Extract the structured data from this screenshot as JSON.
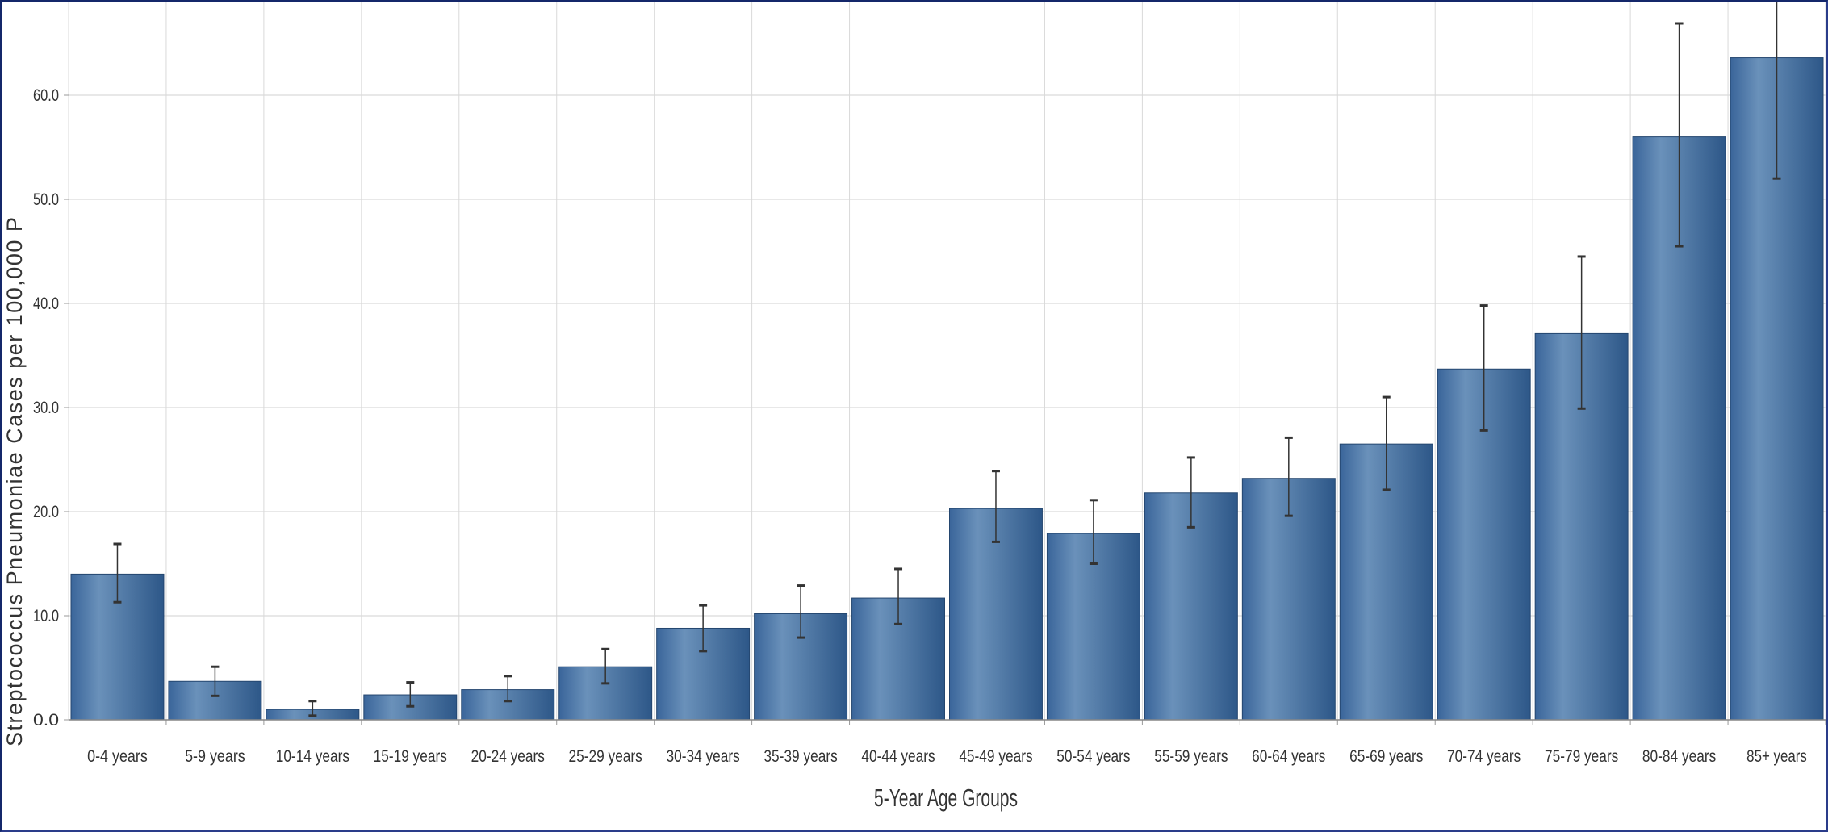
{
  "chart_data": {
    "type": "bar",
    "title": "",
    "xlabel": "5-Year Age Groups",
    "ylabel": "Streptococcus Pneumoniae Cases per 100,000 P",
    "categories": [
      "0-4 years",
      "5-9 years",
      "10-14 years",
      "15-19 years",
      "20-24 years",
      "25-29 years",
      "30-34 years",
      "35-39 years",
      "40-44 years",
      "45-49 years",
      "50-54 years",
      "55-59 years",
      "60-64 years",
      "65-69 years",
      "70-74 years",
      "75-79 years",
      "80-84 years",
      "85+ years"
    ],
    "values": [
      14.0,
      3.7,
      1.0,
      2.4,
      2.9,
      5.1,
      8.8,
      10.2,
      11.7,
      20.3,
      17.9,
      21.8,
      23.2,
      26.5,
      33.7,
      37.1,
      56.0,
      63.6
    ],
    "error_low": [
      11.3,
      2.3,
      0.4,
      1.3,
      1.8,
      3.5,
      6.6,
      7.9,
      9.2,
      17.1,
      15.0,
      18.5,
      19.6,
      22.1,
      27.8,
      29.9,
      45.5,
      52.0
    ],
    "error_high": [
      16.9,
      5.1,
      1.8,
      3.6,
      4.2,
      6.8,
      11.0,
      12.9,
      14.5,
      23.9,
      21.1,
      25.2,
      27.1,
      31.0,
      39.8,
      44.5,
      66.9,
      69.0
    ],
    "yticks": [
      "0.0",
      "10.0",
      "20.0",
      "30.0",
      "40.0",
      "50.0",
      "60.0"
    ],
    "ylim": [
      0,
      69
    ],
    "grid": true,
    "colors": {
      "bar_dark": "#2f5a8c",
      "bar_light": "#6b92bb",
      "grid": "#d9d9d9",
      "error": "#333333"
    }
  }
}
